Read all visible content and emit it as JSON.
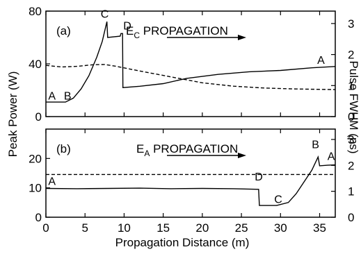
{
  "chart_data": {
    "type": "line",
    "shared_x": {
      "label": "Propagation Distance (m)",
      "lim": [
        0,
        37
      ],
      "ticks": [
        0,
        5,
        10,
        15,
        20,
        25,
        30,
        35
      ]
    },
    "panels": [
      {
        "id": "a",
        "panel_label": "(a)",
        "title_main": "E",
        "title_sub": "C",
        "title_rest": " PROPAGATION",
        "left_axis": {
          "label": "Peak Power (W)",
          "lim": [
            0,
            80
          ],
          "ticks": [
            0,
            40,
            80
          ]
        },
        "right_axis": {
          "label": "Pulse FWHM (ps)",
          "lim": [
            0,
            3.4
          ],
          "ticks": [
            0,
            1,
            2,
            3
          ]
        },
        "series": [
          {
            "axis": "left",
            "style": "solid",
            "x": [
              0,
              2.5,
              3.5,
              4.5,
              5.5,
              6.5,
              7.2,
              7.8,
              7.9,
              9.5,
              9.6,
              9.8,
              9.85,
              12,
              15,
              18,
              22,
              26,
              30,
              34,
              37
            ],
            "y": [
              11,
              11,
              14,
              21,
              31,
              45,
              57,
              72,
              60,
              61,
              63,
              63,
              22,
              23,
              25,
              29,
              32,
              34,
              35,
              37,
              38
            ]
          },
          {
            "axis": "right",
            "style": "dashed",
            "x": [
              0,
              2,
              4,
              6,
              7.5,
              9,
              12,
              16,
              20,
              24,
              28,
              32,
              37
            ],
            "y": [
              1.65,
              1.6,
              1.62,
              1.67,
              1.68,
              1.62,
              1.47,
              1.28,
              1.09,
              0.98,
              0.92,
              0.89,
              0.87
            ]
          }
        ],
        "point_labels": [
          {
            "text": "A",
            "x": 0.3,
            "y": 13
          },
          {
            "text": "B",
            "x": 2.3,
            "y": 13
          },
          {
            "text": "C",
            "x": 7.0,
            "y": 75
          },
          {
            "text": "D",
            "x": 9.9,
            "y": 66
          },
          {
            "text": "A",
            "x": 34.7,
            "y": 40
          }
        ]
      },
      {
        "id": "b",
        "panel_label": "(b)",
        "title_main": "E",
        "title_sub": "A",
        "title_rest": " PROPAGATION",
        "left_axis": {
          "label": "",
          "lim": [
            0,
            30
          ],
          "ticks": [
            0,
            10,
            20
          ]
        },
        "right_axis": {
          "label": "",
          "lim": [
            0,
            3.4
          ],
          "ticks": [
            0,
            1,
            2,
            3
          ]
        },
        "series": [
          {
            "axis": "left",
            "style": "solid",
            "x": [
              0,
              4,
              8,
              12,
              16,
              20,
              24,
              27.2,
              27.3,
              29.5,
              31,
              32,
              33,
              34,
              34.8,
              35.0,
              36,
              37
            ],
            "y": [
              9.8,
              9.7,
              9.8,
              9.9,
              9.7,
              9.8,
              9.7,
              9.5,
              4,
              4,
              5,
              8,
              12,
              16,
              20.5,
              17.5,
              17.7,
              17.8
            ]
          },
          {
            "axis": "right",
            "style": "dashed",
            "x": [
              0,
              37
            ],
            "y": [
              1.65,
              1.65
            ]
          }
        ],
        "point_labels": [
          {
            "text": "A",
            "x": 0.3,
            "y": 11
          },
          {
            "text": "D",
            "x": 26.7,
            "y": 12.5
          },
          {
            "text": "C",
            "x": 29.2,
            "y": 4.8
          },
          {
            "text": "B",
            "x": 34.0,
            "y": 23.5
          },
          {
            "text": "A",
            "x": 36.0,
            "y": 19.5
          }
        ]
      }
    ]
  }
}
